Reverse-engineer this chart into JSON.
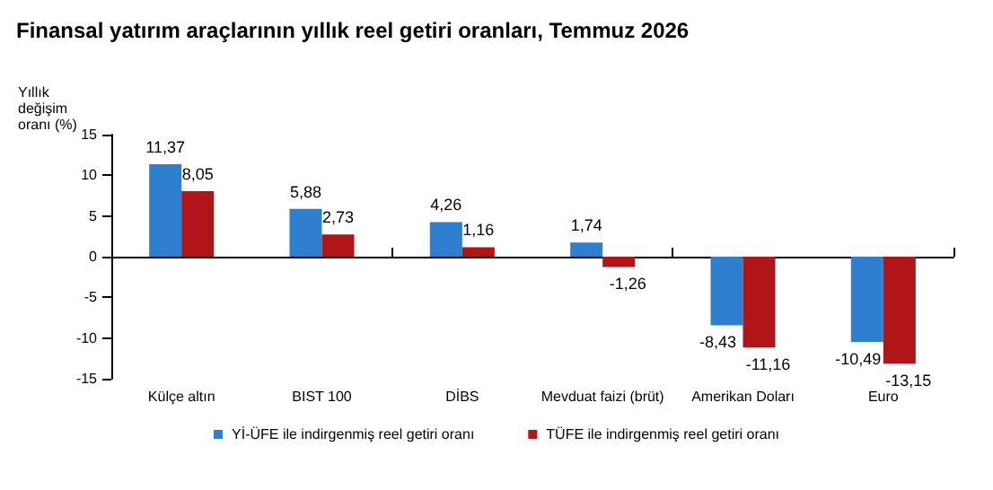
{
  "chart_data": {
    "type": "bar",
    "title": "Finansal yatırım araçlarının yıllık reel getiri oranları, Temmuz 2026",
    "ylabel": "Yıllık değişim oranı (%)",
    "categories": [
      "Külçe altın",
      "BIST 100",
      "DİBS",
      "Mevduat faizi (brüt)",
      "Amerikan Doları",
      "Euro"
    ],
    "series": [
      {
        "name": "Yİ-ÜFE ile indirgenmiş reel getiri oranı",
        "color": "#2e7fcf",
        "values": [
          11.37,
          5.88,
          4.26,
          1.74,
          -8.43,
          -10.49
        ],
        "value_labels": [
          "11,37",
          "5,88",
          "4,26",
          "1,74",
          "-8,43",
          "-10,49"
        ]
      },
      {
        "name": "TÜFE ile indirgenmiş reel getiri oranı",
        "color": "#b01518",
        "values": [
          8.05,
          2.73,
          1.16,
          -1.26,
          -11.16,
          -13.15
        ],
        "value_labels": [
          "8,05",
          "2,73",
          "1,16",
          "-1,26",
          "-11,16",
          "-13,15"
        ]
      }
    ],
    "ylim": [
      -15,
      15
    ],
    "yticks": [
      -15,
      -10,
      -5,
      0,
      5,
      10,
      15
    ],
    "legend": "bottom"
  }
}
